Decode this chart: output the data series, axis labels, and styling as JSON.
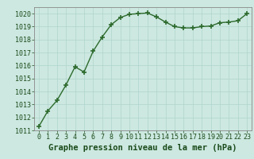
{
  "x": [
    0,
    1,
    2,
    3,
    4,
    5,
    6,
    7,
    8,
    9,
    10,
    11,
    12,
    13,
    14,
    15,
    16,
    17,
    18,
    19,
    20,
    21,
    22,
    23
  ],
  "y": [
    1011.3,
    1012.5,
    1013.3,
    1014.5,
    1015.9,
    1015.5,
    1017.1,
    1018.2,
    1019.15,
    1019.7,
    1019.95,
    1020.0,
    1020.05,
    1019.75,
    1019.35,
    1019.0,
    1018.9,
    1018.9,
    1019.0,
    1019.05,
    1019.3,
    1019.35,
    1019.45,
    1020.0
  ],
  "line_color": "#2d6a2d",
  "marker": "+",
  "marker_color": "#2d6a2d",
  "bg_color": "#cce8e0",
  "grid_color": "#b0d4cc",
  "xlabel": "Graphe pression niveau de la mer (hPa)",
  "xlabel_color": "#1a4a1a",
  "tick_color": "#1a4a1a",
  "ylim": [
    1011,
    1020.5
  ],
  "yticks": [
    1011,
    1012,
    1013,
    1014,
    1015,
    1016,
    1017,
    1018,
    1019,
    1020
  ],
  "xticks": [
    0,
    1,
    2,
    3,
    4,
    5,
    6,
    7,
    8,
    9,
    10,
    11,
    12,
    13,
    14,
    15,
    16,
    17,
    18,
    19,
    20,
    21,
    22,
    23
  ],
  "linewidth": 1.0,
  "markersize": 5,
  "font_size": 6,
  "xlabel_fontsize": 7.5
}
